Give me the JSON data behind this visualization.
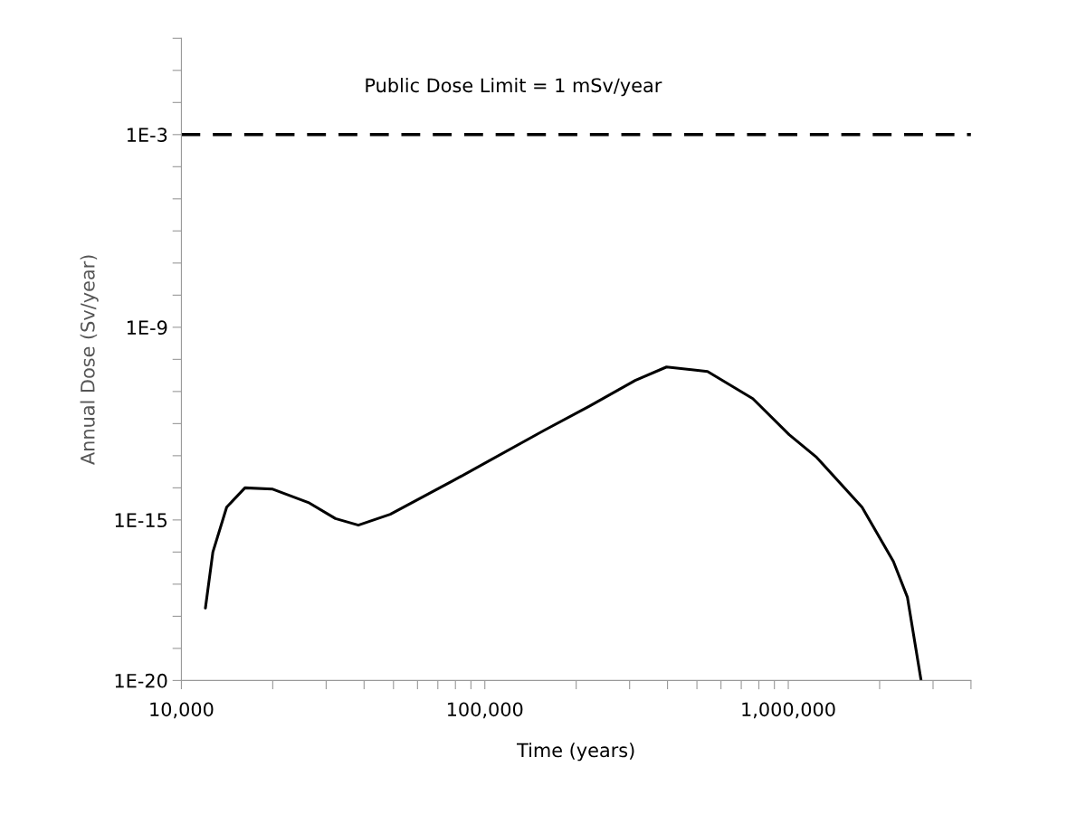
{
  "chart_data": {
    "type": "line",
    "xlabel": "Time (years)",
    "ylabel": "Annual Dose (Sv/year)",
    "log": "xy",
    "grid": false,
    "legend": false,
    "marker": "none",
    "line_style": "solid",
    "xlim": [
      10000,
      4000000
    ],
    "ylim": [
      1e-20,
      1
    ],
    "xticks": [
      {
        "value": 10000,
        "label": "10,000"
      },
      {
        "value": 20000,
        "label": null
      },
      {
        "value": 30000,
        "label": null
      },
      {
        "value": 40000,
        "label": null
      },
      {
        "value": 50000,
        "label": null
      },
      {
        "value": 60000,
        "label": null
      },
      {
        "value": 70000,
        "label": null
      },
      {
        "value": 80000,
        "label": null
      },
      {
        "value": 90000,
        "label": null
      },
      {
        "value": 100000,
        "label": "100,000"
      },
      {
        "value": 200000,
        "label": null
      },
      {
        "value": 300000,
        "label": null
      },
      {
        "value": 400000,
        "label": null
      },
      {
        "value": 500000,
        "label": null
      },
      {
        "value": 600000,
        "label": null
      },
      {
        "value": 700000,
        "label": null
      },
      {
        "value": 800000,
        "label": null
      },
      {
        "value": 900000,
        "label": null
      },
      {
        "value": 1000000,
        "label": "1,000,000"
      },
      {
        "value": 2000000,
        "label": null
      },
      {
        "value": 3000000,
        "label": null
      },
      {
        "value": 4000000,
        "label": null
      }
    ],
    "yticks": [
      {
        "value": 1e-20,
        "label": "1E-20"
      },
      {
        "value": 1e-19,
        "label": null
      },
      {
        "value": 1e-18,
        "label": null
      },
      {
        "value": 1e-17,
        "label": null
      },
      {
        "value": 1e-16,
        "label": null
      },
      {
        "value": 1e-15,
        "label": "1E-15"
      },
      {
        "value": 1e-14,
        "label": null
      },
      {
        "value": 1e-13,
        "label": null
      },
      {
        "value": 1e-12,
        "label": null
      },
      {
        "value": 1e-11,
        "label": null
      },
      {
        "value": 1e-10,
        "label": null
      },
      {
        "value": 1e-09,
        "label": "1E-9"
      },
      {
        "value": 1e-08,
        "label": null
      },
      {
        "value": 1e-07,
        "label": null
      },
      {
        "value": 1e-06,
        "label": null
      },
      {
        "value": 1e-05,
        "label": null
      },
      {
        "value": 0.0001,
        "label": null
      },
      {
        "value": 0.001,
        "label": "1E-3"
      },
      {
        "value": 0.01,
        "label": null
      },
      {
        "value": 0.1,
        "label": null
      },
      {
        "value": 1,
        "label": null
      }
    ],
    "ref_lines": [
      {
        "axis": "y",
        "value": 0.001,
        "label": "Public Dose Limit = 1 mSv/year",
        "color": "#000000",
        "line_style": "dashed"
      }
    ],
    "series": [
      {
        "color": "#000000",
        "x": [
          12000,
          12700,
          14100,
          16200,
          20000,
          26200,
          32200,
          38300,
          48800,
          78900,
          157000,
          221000,
          313000,
          397000,
          542000,
          764000,
          1007000,
          1240000,
          1750000,
          2220000,
          2470000,
          2740000
        ],
        "values": [
          1.8e-18,
          1e-16,
          2.5e-15,
          1e-14,
          9.1e-15,
          3.5e-15,
          1.1e-15,
          6.9e-16,
          1.5e-15,
          1.7e-14,
          6.2e-13,
          3.5e-12,
          2.2e-11,
          5.8e-11,
          4.2e-11,
          6e-12,
          4.5e-13,
          8.9e-14,
          2.5e-15,
          5.1e-17,
          3.9e-18,
          1e-20
        ]
      }
    ]
  }
}
